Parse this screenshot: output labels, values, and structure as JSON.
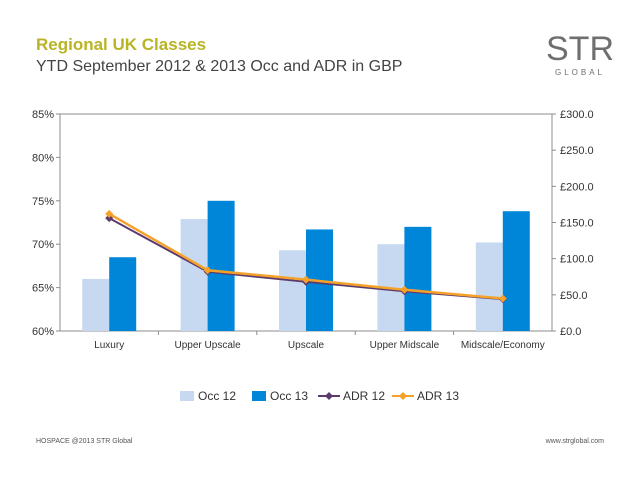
{
  "header": {
    "title": "Regional UK Classes",
    "subtitle": "YTD September 2012 & 2013 Occ and ADR in GBP"
  },
  "logo": {
    "word": "STR",
    "sub": "GLOBAL"
  },
  "footer": {
    "left": "HOSPACE @2013 STR Global",
    "right": "www.strglobal.com"
  },
  "colors": {
    "title": "#b9b425",
    "occ12": "#c6d9f1",
    "occ13": "#0086d9",
    "adr12": "#5b3a6e",
    "adr13": "#f5a22a"
  },
  "chart_data": {
    "type": "bar",
    "categories": [
      "Luxury",
      "Upper Upscale",
      "Upscale",
      "Upper Midscale",
      "Midscale/Economy"
    ],
    "series": [
      {
        "name": "Occ 12",
        "type": "bar",
        "axis": "left",
        "values": [
          66.0,
          72.9,
          69.3,
          70.0,
          70.2
        ]
      },
      {
        "name": "Occ 13",
        "type": "bar",
        "axis": "left",
        "values": [
          68.5,
          75.0,
          71.7,
          72.0,
          73.8
        ]
      },
      {
        "name": "ADR 12",
        "type": "line",
        "axis": "right",
        "values": [
          156,
          82,
          68,
          55,
          44
        ]
      },
      {
        "name": "ADR 13",
        "type": "line",
        "axis": "right",
        "values": [
          162,
          84,
          71,
          57,
          45
        ]
      }
    ],
    "left_axis": {
      "ylim": [
        60,
        85
      ],
      "ticks": [
        "60%",
        "65%",
        "70%",
        "75%",
        "80%",
        "85%"
      ]
    },
    "right_axis": {
      "ylim": [
        0,
        300
      ],
      "ticks": [
        "£0.0",
        "£50.0",
        "£100.0",
        "£150.0",
        "£200.0",
        "£250.0",
        "£300.0"
      ]
    },
    "legend_position": "bottom",
    "grid": false
  }
}
